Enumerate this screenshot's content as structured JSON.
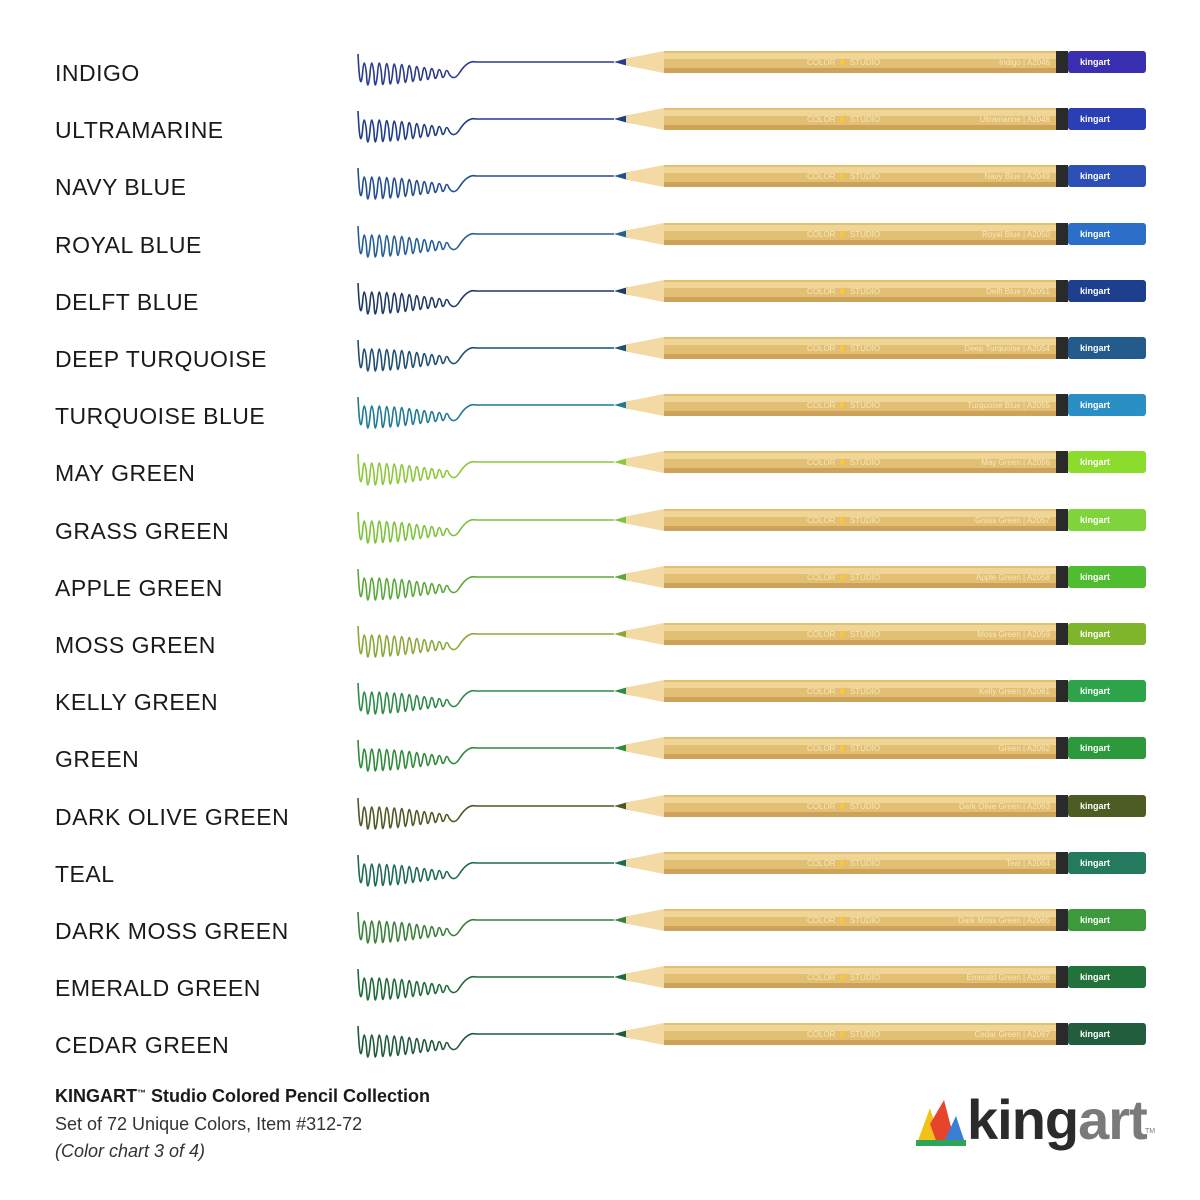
{
  "pencils": [
    {
      "name": "INDIGO",
      "label": "Indigo",
      "code": "A2046",
      "color": "#2b3a8a",
      "cap": "#3a2fb0",
      "brand": "kingart"
    },
    {
      "name": "ULTRAMARINE",
      "label": "Ultramarine",
      "code": "A2048",
      "color": "#1f3d86",
      "cap": "#2a3fb5",
      "brand": "kingart"
    },
    {
      "name": "NAVY BLUE",
      "label": "Navy Blue",
      "code": "A2049",
      "color": "#234f8c",
      "cap": "#2c4fb8",
      "brand": "kingart"
    },
    {
      "name": "ROYAL BLUE",
      "label": "Royal Blue",
      "code": "A2050",
      "color": "#255f95",
      "cap": "#2c6fc8",
      "brand": "kingart"
    },
    {
      "name": "DELFT BLUE",
      "label": "Delft Blue",
      "code": "A2051",
      "color": "#1f3a66",
      "cap": "#1e3f8e",
      "brand": "kingart"
    },
    {
      "name": "DEEP TURQUOISE",
      "label": "Deep Turquoise",
      "code": "A2054",
      "color": "#1f4f72",
      "cap": "#225b8c",
      "brand": "kingart"
    },
    {
      "name": "TURQUOISE BLUE",
      "label": "Turquoise Blue",
      "code": "A2055",
      "color": "#1f7a96",
      "cap": "#2a8fc4",
      "brand": "kingart"
    },
    {
      "name": "MAY GREEN",
      "label": "May Green",
      "code": "A2056",
      "color": "#8bc83a",
      "cap": "#8bdc2c",
      "brand": "kingart"
    },
    {
      "name": "GRASS GREEN",
      "label": "Grass Green",
      "code": "A2057",
      "color": "#7cc23a",
      "cap": "#7ed43a",
      "brand": "kingart"
    },
    {
      "name": "APPLE GREEN",
      "label": "Apple Green",
      "code": "A2058",
      "color": "#5aa83a",
      "cap": "#4fbd2f",
      "brand": "kingart"
    },
    {
      "name": "MOSS GREEN",
      "label": "Moss Green",
      "code": "A2059",
      "color": "#8aa83a",
      "cap": "#7fb52a",
      "brand": "kingart"
    },
    {
      "name": "KELLY GREEN",
      "label": "Kelly Green",
      "code": "A2061",
      "color": "#2f8a4a",
      "cap": "#2ea44a",
      "brand": "kingart"
    },
    {
      "name": "GREEN",
      "label": "Green",
      "code": "A2062",
      "color": "#2f8a3a",
      "cap": "#2c9a3a",
      "brand": "kingart"
    },
    {
      "name": "DARK OLIVE GREEN",
      "label": "Dark Olive Green",
      "code": "A2063",
      "color": "#4a5a22",
      "cap": "#4d5c22",
      "brand": "kingart"
    },
    {
      "name": "TEAL",
      "label": "Teal",
      "code": "A2064",
      "color": "#1f6a55",
      "cap": "#237a5e",
      "brand": "kingart"
    },
    {
      "name": "DARK MOSS GREEN",
      "label": "Dark Moss Green",
      "code": "A2065",
      "color": "#3a7f3a",
      "cap": "#3c9a3c",
      "brand": "kingart"
    },
    {
      "name": "EMERALD GREEN",
      "label": "Emerald Green",
      "code": "A2066",
      "color": "#1f6a3a",
      "cap": "#22723c",
      "brand": "kingart"
    },
    {
      "name": "CEDAR GREEN",
      "label": "Cedar Green",
      "code": "A2067",
      "color": "#1f5a3a",
      "cap": "#225e3e",
      "brand": "kingart"
    }
  ],
  "pencil_series_label": "COLOR ⚡ STUDIO",
  "footer": {
    "title": "KINGART",
    "title_tm": "™",
    "title_rest": " Studio Colored Pencil Collection",
    "line1": "Set of 72 Unique Colors, Item #312-72",
    "line2": "(Color chart 3 of 4)"
  },
  "logo": {
    "part1": "king",
    "part2": "art",
    "tm": "TM",
    "colors": [
      "#f2c21b",
      "#e8442b",
      "#3a7fd5",
      "#2ea35a"
    ]
  }
}
